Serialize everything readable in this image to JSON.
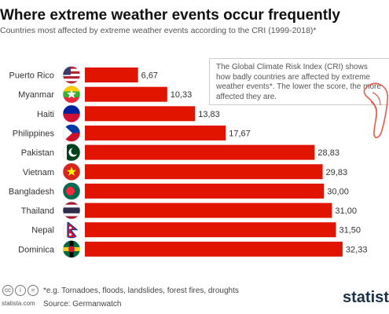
{
  "header": {
    "title": "Where extreme weather events occur frequently",
    "subtitle": "Countries most affected by extreme weather events according to the CRI (1999-2018)*"
  },
  "note": {
    "text": "The Global Climate Risk Index (CRI) shows how badly countries are affected by extreme weather events*. The lower the score, the more affected they are."
  },
  "footer": {
    "footnote": "*e.g. Tornadoes, floods, landslides, forest fires, droughts",
    "source": "Source: Germanwatch",
    "site": "statista.com",
    "logo": "statista"
  },
  "colors": {
    "bar": "#e11400",
    "text": "#333333"
  },
  "chart_data": {
    "type": "bar",
    "orientation": "horizontal",
    "categories": [
      "Puerto Rico",
      "Myanmar",
      "Haiti",
      "Philippines",
      "Pakistan",
      "Vietnam",
      "Bangladesh",
      "Thailand",
      "Nepal",
      "Dominica"
    ],
    "values": [
      6.67,
      10.33,
      13.83,
      17.67,
      28.83,
      29.83,
      30.0,
      31.0,
      31.5,
      32.33
    ],
    "value_labels": [
      "6,67",
      "10,33",
      "13,83",
      "17,67",
      "28,83",
      "29,83",
      "30,00",
      "31,00",
      "31,50",
      "32,33"
    ],
    "title": "Where extreme weather events occur frequently",
    "subtitle": "Countries most affected by extreme weather events according to the CRI (1999-2018)*",
    "xlim": [
      0,
      35
    ],
    "grid": false,
    "legend": "none"
  }
}
